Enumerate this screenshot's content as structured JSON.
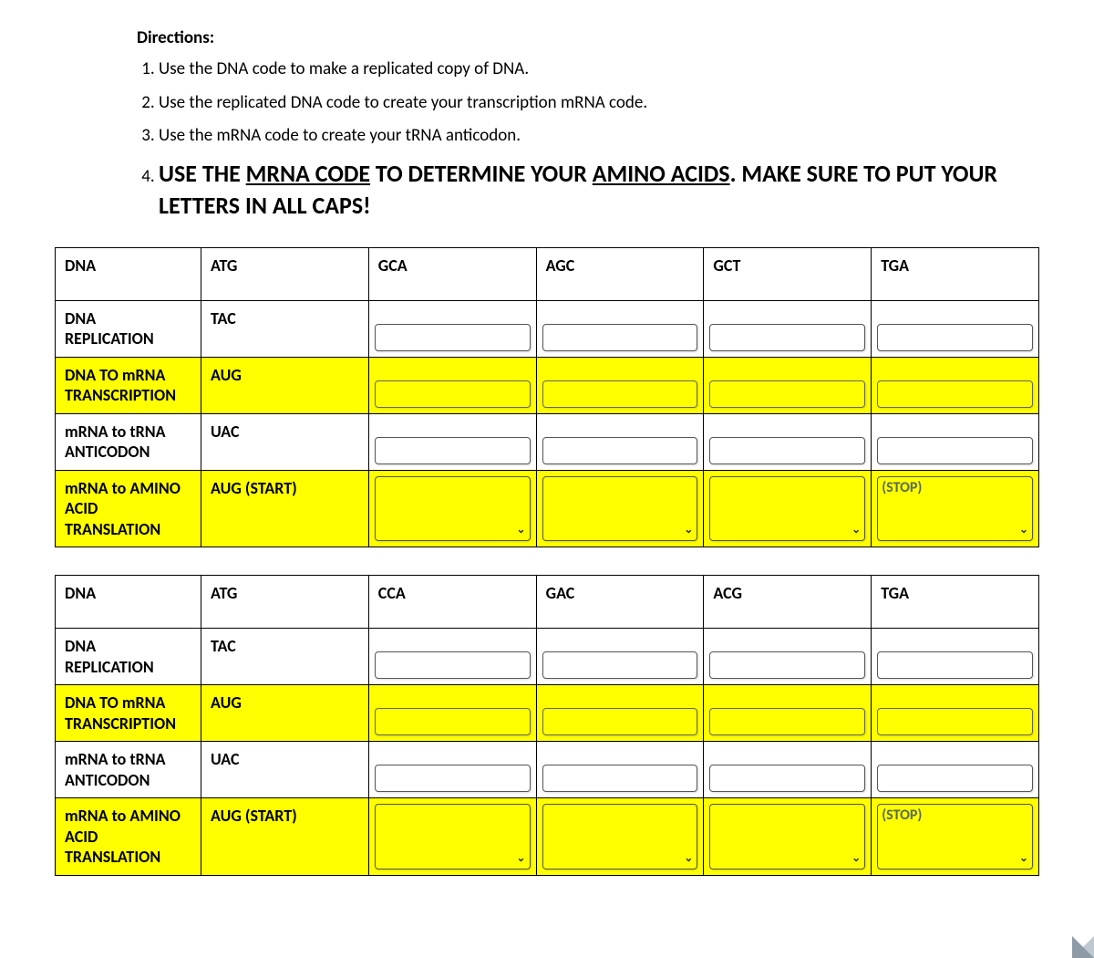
{
  "directions": {
    "title": "Directions:",
    "steps": [
      "Use the DNA code to make a replicated copy of DNA.",
      "Use the replicated DNA code to create your transcription mRNA code.",
      "Use the mRNA code to create your tRNA anticodon."
    ],
    "step4_prefix": "USE THE ",
    "step4_u1": "MRNA CODE",
    "step4_mid": " TO DETERMINE YOUR ",
    "step4_u2": "AMINO ACIDS",
    "step4_suffix": ". MAKE SURE TO PUT YOUR LETTERS IN ALL CAPS!"
  },
  "row_labels": {
    "dna": "DNA",
    "replication_l1": "DNA",
    "replication_l2": "REPLICATION",
    "transcription_l1": "DNA TO mRNA",
    "transcription_l2": "TRANSCRIPTION",
    "anticodon_l1": "mRNA to tRNA",
    "anticodon_l2": "ANTICODON",
    "translation_l1": "mRNA to AMINO",
    "translation_l2": "ACID",
    "translation_l3": "TRANSLATION"
  },
  "table1": {
    "dna": [
      "ATG",
      "GCA",
      "AGC",
      "GCT",
      "TGA"
    ],
    "replication_first": "TAC",
    "transcription_first": "AUG",
    "anticodon_first": "UAC",
    "translation_first": "AUG (START)",
    "stop_placeholder": "(STOP)"
  },
  "table2": {
    "dna": [
      "ATG",
      "CCA",
      "GAC",
      "ACG",
      "TGA"
    ],
    "replication_first": "TAC",
    "transcription_first": "AUG",
    "anticodon_first": "UAC",
    "translation_first": "AUG (START)",
    "stop_placeholder": "(STOP)"
  },
  "colors": {
    "highlight": "#ffff00",
    "border": "#000000",
    "page_bg": "#ffffff",
    "outer_bg": "#d4d4d4",
    "placeholder_text": "#5a6a52"
  }
}
